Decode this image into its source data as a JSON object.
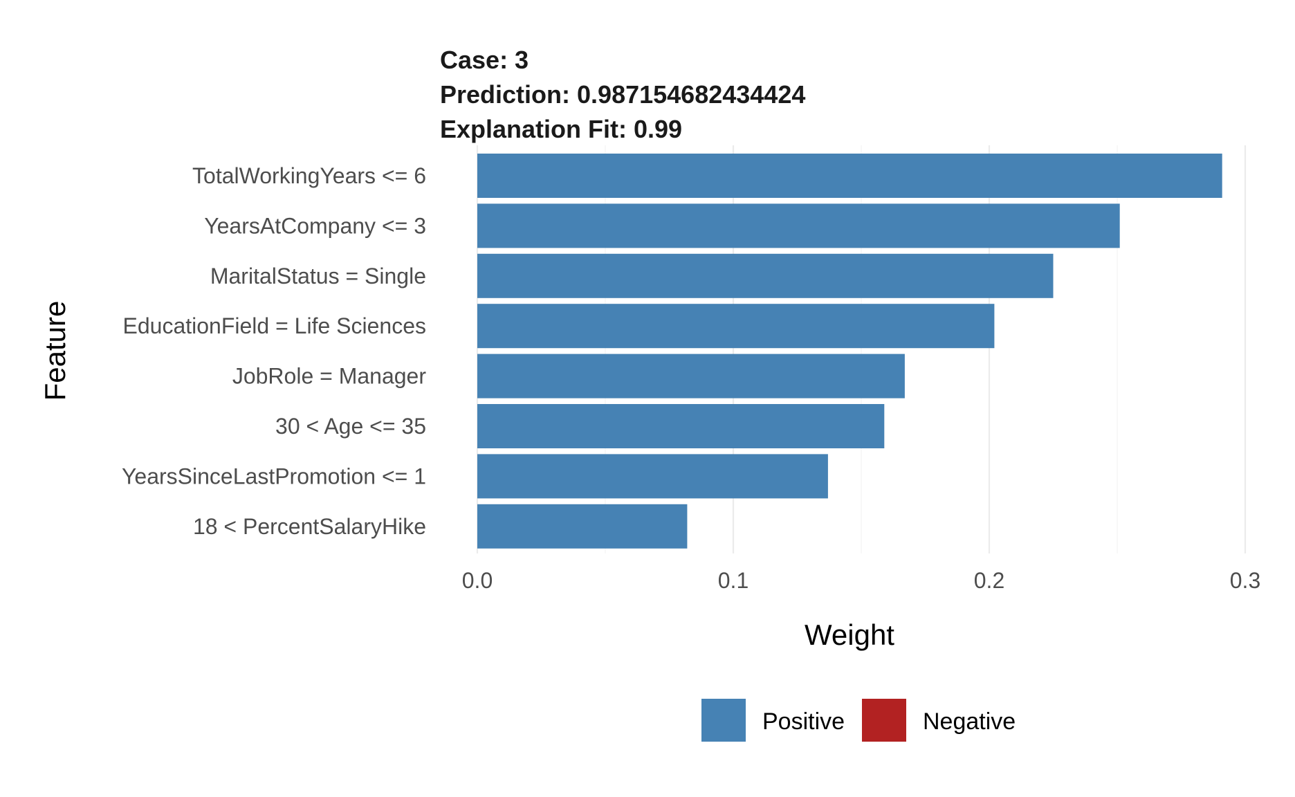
{
  "chart_data": {
    "type": "bar",
    "orientation": "horizontal",
    "title_lines": [
      "Case: 3",
      "Prediction: 0.987154682434424",
      "Explanation Fit: 0.99"
    ],
    "categories": [
      "TotalWorkingYears <= 6",
      "YearsAtCompany <= 3",
      "MaritalStatus = Single",
      "EducationField = Life Sciences",
      "JobRole = Manager",
      "30 < Age <= 35",
      "YearsSinceLastPromotion <= 1",
      "18 < PercentSalaryHike"
    ],
    "values": [
      0.291,
      0.251,
      0.225,
      0.202,
      0.167,
      0.159,
      0.137,
      0.082
    ],
    "signs": [
      "Positive",
      "Positive",
      "Positive",
      "Positive",
      "Positive",
      "Positive",
      "Positive",
      "Positive"
    ],
    "xlabel": "Weight",
    "ylabel": "Feature",
    "xlim": [
      0,
      0.3
    ],
    "x_ticks": [
      0.0,
      0.1,
      0.2,
      0.3
    ],
    "x_tick_labels": [
      "0.0",
      "0.1",
      "0.2",
      "0.3"
    ],
    "grid": true,
    "legend": {
      "placement": "bottom",
      "entries": [
        {
          "label": "Positive",
          "color": "#4682B4"
        },
        {
          "label": "Negative",
          "color": "#B22222"
        }
      ]
    },
    "colors": {
      "Positive": "#4682B4",
      "Negative": "#B22222"
    }
  }
}
